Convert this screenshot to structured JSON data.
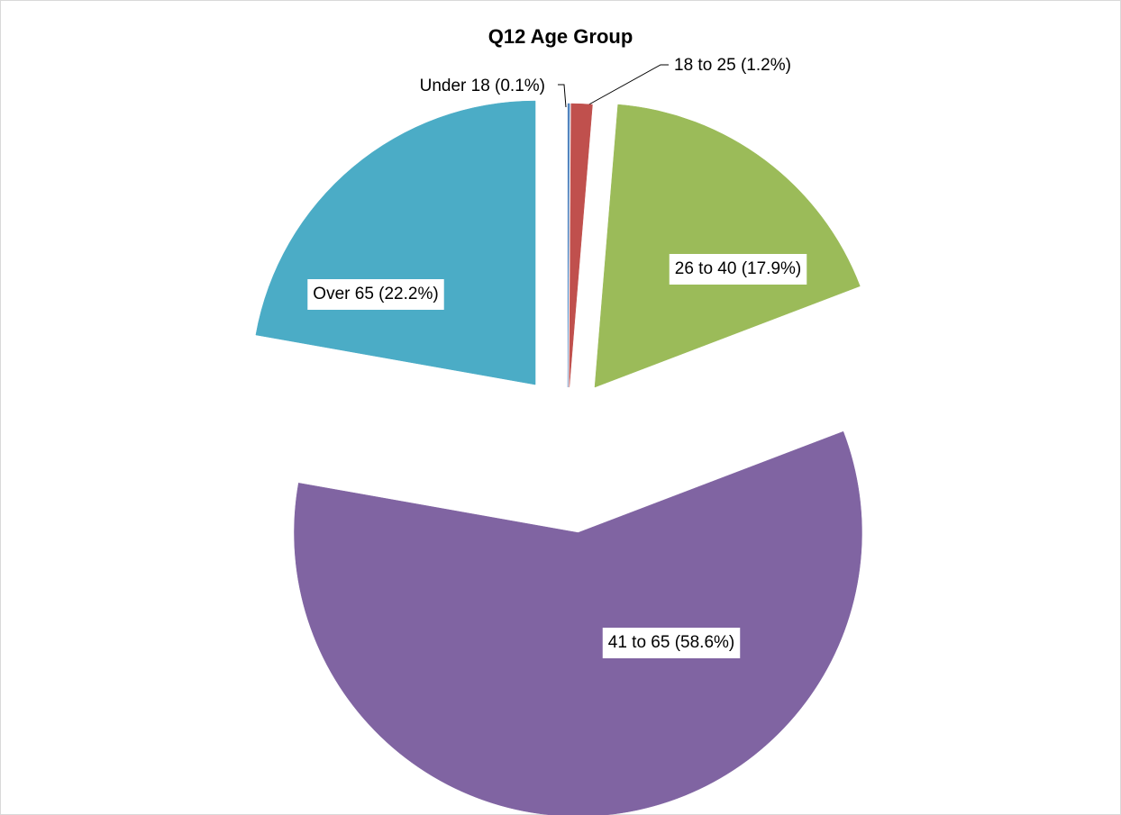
{
  "chart_data": {
    "type": "pie",
    "title": "Q12 Age Group",
    "values": [
      0.1,
      1.2,
      17.9,
      58.6,
      22.2
    ],
    "value_labels": [
      "Under 18 (0.1%)",
      "18 to 25 (1.2%)",
      "26 to 40 (17.9%)",
      "41 to 65 (58.6%)",
      "Over 65 (22.2%)"
    ],
    "colors": [
      "#4f81bd",
      "#c0504d",
      "#9bbb59",
      "#8064a2",
      "#4bacc6"
    ]
  }
}
